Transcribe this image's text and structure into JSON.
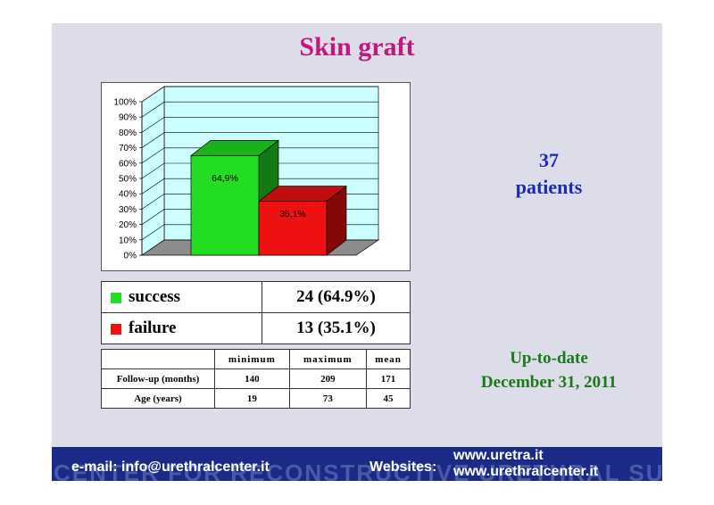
{
  "title": "Skin graft",
  "chart_data": {
    "type": "bar",
    "categories": [
      "success",
      "failure"
    ],
    "values": [
      64.9,
      35.1
    ],
    "data_labels": [
      "64,9%",
      "35,1%"
    ],
    "colors": [
      "#22dd22",
      "#ee1111"
    ],
    "yticks": [
      "0%",
      "10%",
      "20%",
      "30%",
      "40%",
      "50%",
      "60%",
      "70%",
      "80%",
      "90%",
      "100%"
    ],
    "ylim": [
      0,
      100
    ],
    "grid": true,
    "three_d": true
  },
  "patients": {
    "count": "37",
    "label": "patients"
  },
  "outcome_table": {
    "rows": [
      {
        "label": "success",
        "value": "24 (64.9%)",
        "color": "#22dd22"
      },
      {
        "label": "failure",
        "value": "13 (35.1%)",
        "color": "#ee1111"
      }
    ]
  },
  "stats_table": {
    "headers": [
      "",
      "minimum",
      "maximum",
      "mean"
    ],
    "rows": [
      {
        "label": "Follow-up (months)",
        "values": [
          "140",
          "209",
          "171"
        ]
      },
      {
        "label": "Age (years)",
        "values": [
          "19",
          "73",
          "45"
        ]
      }
    ]
  },
  "update": {
    "line1": "Up-to-date",
    "line2": "December 31, 2011"
  },
  "footer": {
    "email": "e-mail: info@urethralcenter.it",
    "websites_label": "Websites:",
    "site1": "www.uretra.it",
    "site2": "www.urethralcenter.it",
    "background_text": "CENTER FOR RECONSTRUCTIVE URETHRAL SURGERY"
  }
}
